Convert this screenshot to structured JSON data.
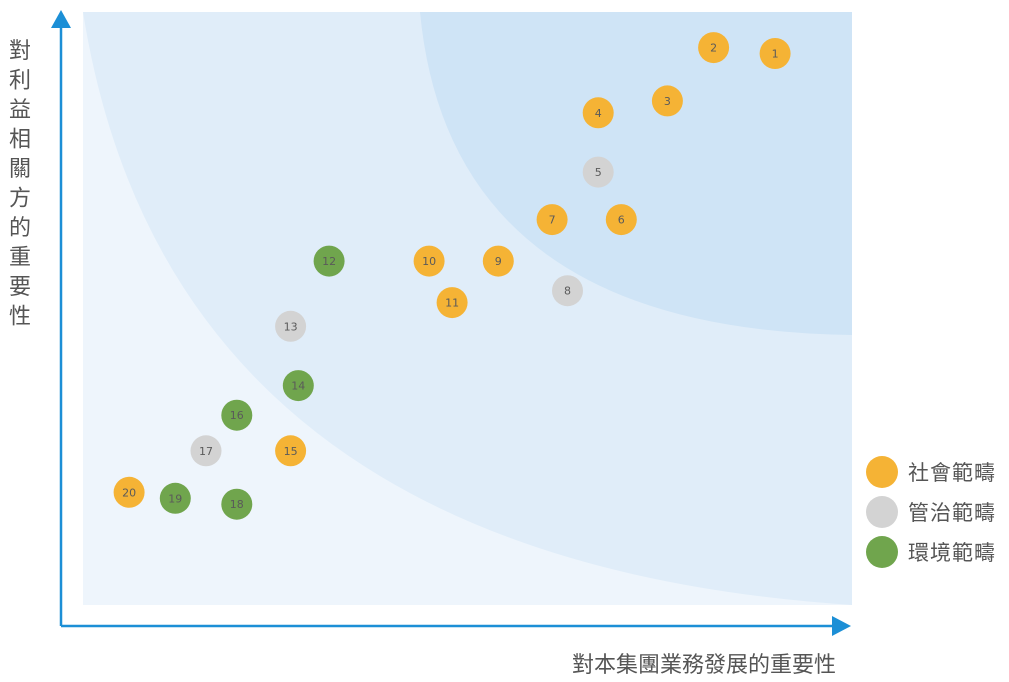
{
  "colors": {
    "social": "#f5b335",
    "governance": "#d3d3d3",
    "environment": "#70a54d",
    "axis": "#1c8fd6",
    "zone_outer": "#eef5fc",
    "zone_middle": "#e0edf9",
    "zone_inner": "#cfe4f6"
  },
  "chart_data": {
    "type": "scatter",
    "xlabel": "對本集團業務發展的重要性",
    "ylabel": "對利益相關方的重要性",
    "xlim": [
      0,
      100
    ],
    "ylim": [
      0,
      100
    ],
    "grid": false,
    "legend_position": "bottom-right",
    "series": [
      {
        "name": "社會範疇",
        "color_key": "social",
        "points": [
          {
            "label": "1",
            "x": 90,
            "y": 93
          },
          {
            "label": "2",
            "x": 82,
            "y": 94
          },
          {
            "label": "3",
            "x": 76,
            "y": 85
          },
          {
            "label": "4",
            "x": 67,
            "y": 83
          },
          {
            "label": "6",
            "x": 70,
            "y": 65
          },
          {
            "label": "7",
            "x": 61,
            "y": 65
          },
          {
            "label": "9",
            "x": 54,
            "y": 58
          },
          {
            "label": "10",
            "x": 45,
            "y": 58
          },
          {
            "label": "11",
            "x": 48,
            "y": 51
          },
          {
            "label": "15",
            "x": 27,
            "y": 26
          },
          {
            "label": "20",
            "x": 6,
            "y": 19
          }
        ]
      },
      {
        "name": "管治範疇",
        "color_key": "governance",
        "points": [
          {
            "label": "5",
            "x": 67,
            "y": 73
          },
          {
            "label": "8",
            "x": 63,
            "y": 53
          },
          {
            "label": "13",
            "x": 27,
            "y": 47
          },
          {
            "label": "17",
            "x": 16,
            "y": 26
          }
        ]
      },
      {
        "name": "環境範疇",
        "color_key": "environment",
        "points": [
          {
            "label": "12",
            "x": 32,
            "y": 58
          },
          {
            "label": "14",
            "x": 28,
            "y": 37
          },
          {
            "label": "16",
            "x": 20,
            "y": 32
          },
          {
            "label": "18",
            "x": 20,
            "y": 17
          },
          {
            "label": "19",
            "x": 12,
            "y": 18
          }
        ]
      }
    ]
  }
}
